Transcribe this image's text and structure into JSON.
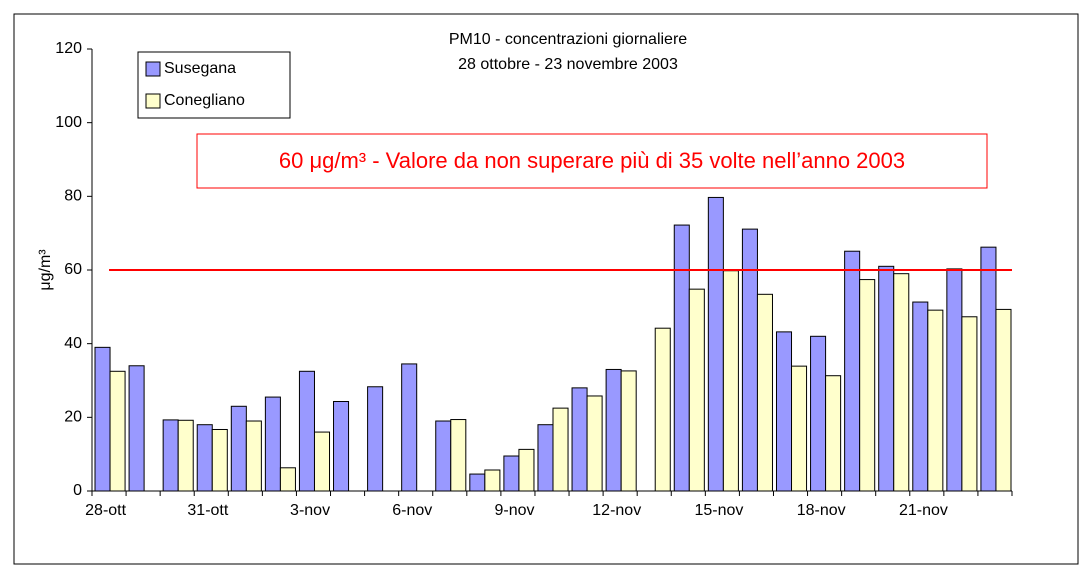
{
  "chart_data": {
    "type": "bar",
    "title": "PM10 - concentrazioni giornaliere",
    "subtitle": "28 ottobre - 23 novembre 2003",
    "y_label": "μg/m³",
    "annotation": "60 μg/m³ - Valore da non superare più di 35 volte nell’anno 2003",
    "threshold": 60,
    "threshold_color": "#ff0000",
    "categories": [
      "28-ott",
      null,
      null,
      "31-ott",
      null,
      null,
      "3-nov",
      null,
      null,
      "6-nov",
      null,
      null,
      "9-nov",
      null,
      null,
      "12-nov",
      null,
      null,
      "15-nov",
      null,
      null,
      "18-nov",
      null,
      null,
      "21-nov",
      null,
      null
    ],
    "series": [
      {
        "name": "Susegana",
        "color": "#9999ff",
        "values": [
          39,
          34,
          19.3,
          18,
          23,
          25.5,
          32.5,
          24.3,
          28.3,
          34.5,
          19,
          4.6,
          9.5,
          18,
          28,
          33,
          null,
          72.2,
          79.7,
          71.1,
          43.2,
          42,
          65.1,
          61,
          51.3,
          60.3,
          66.2
        ]
      },
      {
        "name": "Conegliano",
        "color": "#ffffcc",
        "values": [
          32.5,
          null,
          19.2,
          16.7,
          19,
          6.3,
          16,
          null,
          null,
          null,
          19.4,
          5.7,
          11.3,
          22.5,
          25.8,
          32.6,
          44.2,
          54.8,
          59.8,
          53.4,
          33.9,
          31.3,
          57.4,
          59,
          49.1,
          47.3,
          49.3
        ]
      }
    ],
    "ylim": [
      0,
      120
    ],
    "yticks": [
      0,
      20,
      40,
      60,
      80,
      100,
      120
    ],
    "grid": false
  }
}
